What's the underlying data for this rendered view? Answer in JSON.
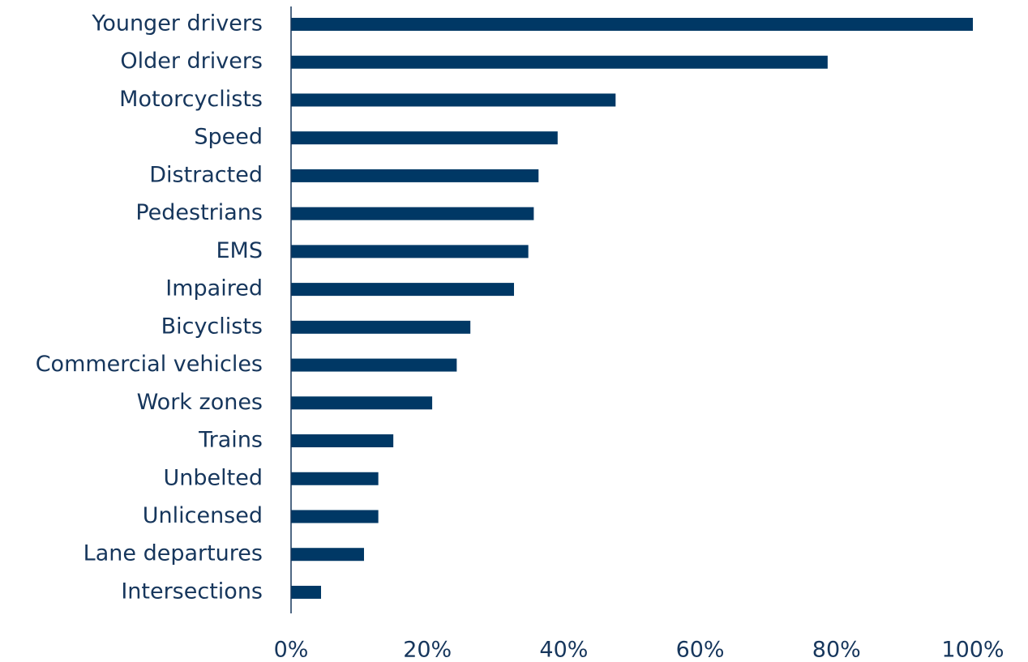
{
  "chart_data": {
    "type": "bar",
    "orientation": "horizontal",
    "categories": [
      "Younger drivers",
      "Older drivers",
      "Motorcyclists",
      "Speed",
      "Distracted",
      "Pedestrians",
      "EMS",
      "Impaired",
      "Bicyclists",
      "Commercial vehicles",
      "Work zones",
      "Trains",
      "Unbelted",
      "Unlicensed",
      "Lane departures",
      "Intersections"
    ],
    "values": [
      100,
      78.7,
      47.6,
      39.1,
      36.3,
      35.6,
      34.8,
      32.7,
      26.3,
      24.3,
      20.7,
      15.0,
      12.8,
      12.8,
      10.7,
      4.4
    ],
    "color": "#003865",
    "xlim": [
      0,
      100
    ],
    "xticks": [
      {
        "value": 0,
        "label": "0%"
      },
      {
        "value": 20,
        "label": "20%"
      },
      {
        "value": 40,
        "label": "40%"
      },
      {
        "value": 60,
        "label": "60%"
      },
      {
        "value": 80,
        "label": "80%"
      },
      {
        "value": 100,
        "label": "100%"
      }
    ],
    "grid": false
  }
}
